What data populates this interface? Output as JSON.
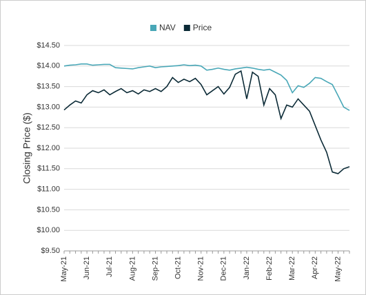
{
  "chart_data": {
    "type": "line",
    "y_label": "Closing Price ($)",
    "categories": [
      "May-21",
      null,
      null,
      null,
      "Jun-21",
      null,
      null,
      null,
      "Jul-21",
      null,
      null,
      null,
      "Aug-21",
      null,
      null,
      null,
      "Sep-21",
      null,
      null,
      null,
      "Oct-21",
      null,
      null,
      null,
      "Nov-21",
      null,
      null,
      null,
      "Dec-21",
      null,
      null,
      null,
      "Jan-22",
      null,
      null,
      null,
      "Feb-22",
      null,
      null,
      null,
      "Mar-22",
      null,
      null,
      null,
      "Apr-22",
      null,
      null,
      null,
      "May-22",
      null,
      null
    ],
    "series": [
      {
        "name": "NAV",
        "color": "#48a7b7",
        "values": [
          14.0,
          14.02,
          14.03,
          14.05,
          14.05,
          14.02,
          14.03,
          14.04,
          14.04,
          13.96,
          13.95,
          13.94,
          13.93,
          13.96,
          13.98,
          14.0,
          13.96,
          13.98,
          13.99,
          14.0,
          14.01,
          14.03,
          14.01,
          14.02,
          14.0,
          13.9,
          13.92,
          13.95,
          13.92,
          13.9,
          13.93,
          13.95,
          13.97,
          13.95,
          13.92,
          13.9,
          13.92,
          13.85,
          13.78,
          13.65,
          13.35,
          13.52,
          13.48,
          13.58,
          13.72,
          13.7,
          13.62,
          13.55,
          13.28,
          13.0,
          12.92
        ]
      },
      {
        "name": "Price",
        "color": "#0b2a36",
        "values": [
          12.93,
          13.05,
          13.15,
          13.1,
          13.3,
          13.4,
          13.35,
          13.42,
          13.3,
          13.38,
          13.45,
          13.35,
          13.4,
          13.32,
          13.42,
          13.38,
          13.45,
          13.38,
          13.5,
          13.72,
          13.6,
          13.68,
          13.62,
          13.7,
          13.55,
          13.3,
          13.4,
          13.5,
          13.32,
          13.48,
          13.8,
          13.88,
          13.2,
          13.85,
          13.75,
          13.05,
          13.45,
          13.3,
          12.72,
          13.05,
          13.0,
          13.2,
          13.05,
          12.9,
          12.55,
          12.2,
          11.9,
          11.42,
          11.38,
          11.5,
          11.55
        ]
      }
    ],
    "ylim": [
      9.5,
      14.5
    ],
    "yticks": [
      {
        "value": 9.5,
        "label": "$9.50"
      },
      {
        "value": 10,
        "label": "$10.00"
      },
      {
        "value": 10.5,
        "label": "$10.50"
      },
      {
        "value": 11,
        "label": "$11.00"
      },
      {
        "value": 11.5,
        "label": "$11.50"
      },
      {
        "value": 12,
        "label": "$12.00"
      },
      {
        "value": 12.5,
        "label": "$12.50"
      },
      {
        "value": 13,
        "label": "$13.00"
      },
      {
        "value": 13.5,
        "label": "$13.50"
      },
      {
        "value": 14,
        "label": "$14.00"
      },
      {
        "value": 14.5,
        "label": "$14.50"
      }
    ],
    "grid": true,
    "legend": "top"
  }
}
